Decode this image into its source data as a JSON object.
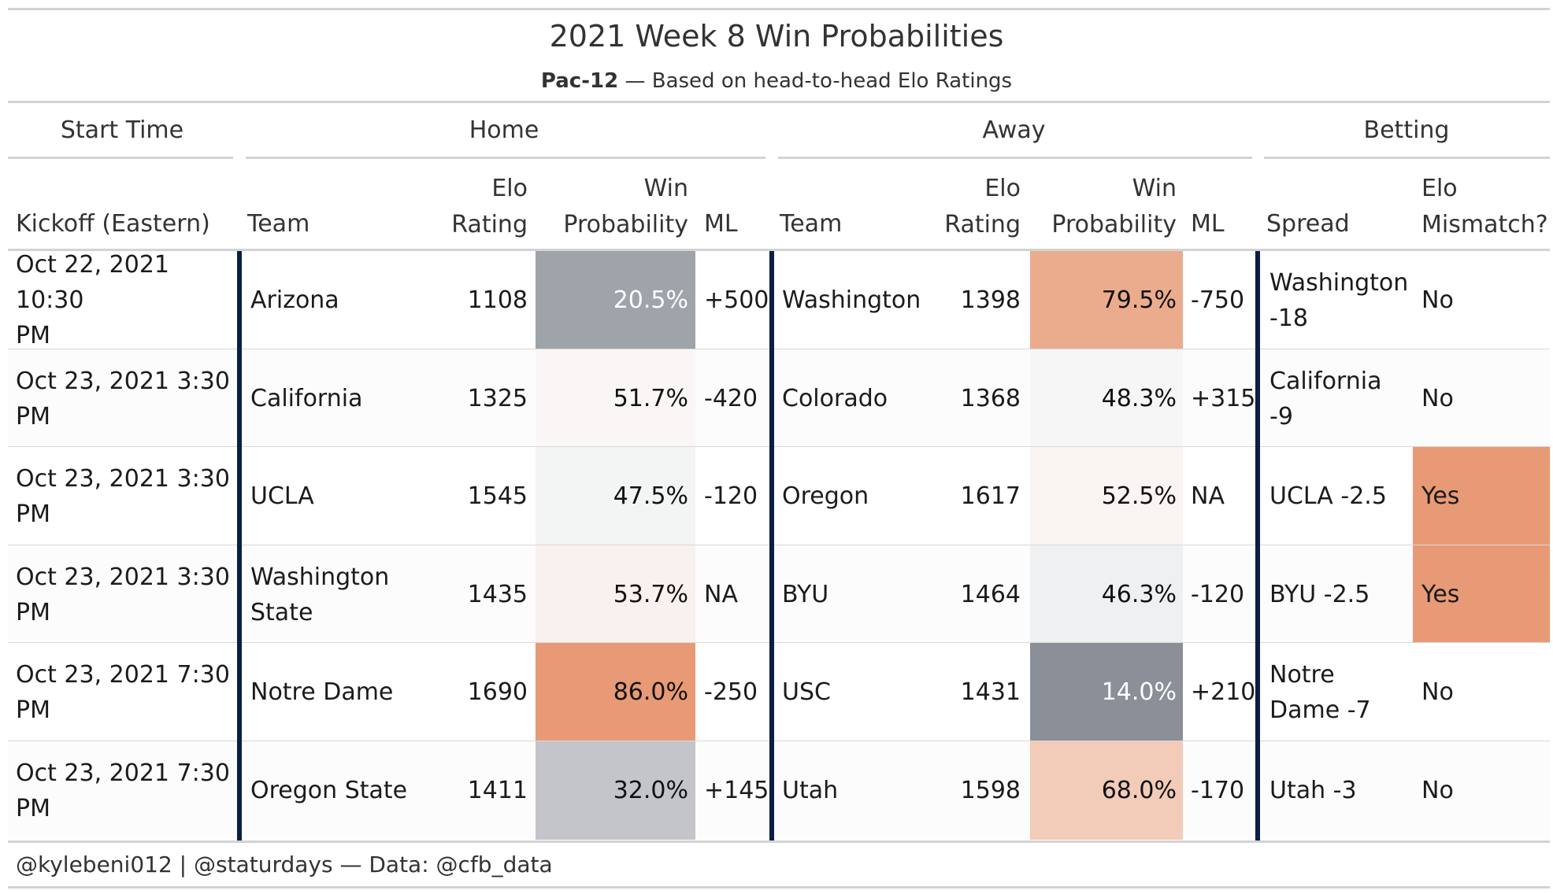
{
  "title": "2021 Week 8 Win Probabilities",
  "subtitle_bold": "Pac-12",
  "subtitle_rest": " — Based on head-to-head Elo Ratings",
  "groups": {
    "start_time": "Start Time",
    "home": "Home",
    "away": "Away",
    "betting": "Betting"
  },
  "headers": {
    "kickoff": "Kickoff (Eastern)",
    "home_team": "Team",
    "home_elo_1": "Elo",
    "home_elo_2": "Rating",
    "home_wp_1": "Win",
    "home_wp_2": "Probability",
    "home_ml": "ML",
    "away_team": "Team",
    "away_elo_1": "Elo",
    "away_elo_2": "Rating",
    "away_wp_1": "Win",
    "away_wp_2": "Probability",
    "away_ml": "ML",
    "spread": "Spread",
    "mismatch_1": "Elo",
    "mismatch_2": "Mismatch?"
  },
  "colors": {
    "divider": "#0b1f44",
    "mismatch_yes": "#e89a76",
    "scale_low": "#8b8f98",
    "scale_mid": "#fbfbfb",
    "scale_high": "#e89a76"
  },
  "chart_data": {
    "type": "table",
    "columns": [
      "Kickoff (Eastern)",
      "Team",
      "Elo Rating",
      "Win Probability",
      "ML",
      "Team",
      "Elo Rating",
      "Win Probability",
      "ML",
      "Spread",
      "Elo Mismatch?"
    ],
    "rows": [
      {
        "kickoff_1": "Oct 22, 2021 10:30",
        "kickoff_2": "PM",
        "home_team_1": "Arizona",
        "home_team_2": "",
        "home_elo": "1108",
        "home_wp": "20.5%",
        "home_wp_value": 0.205,
        "home_ml": "+500",
        "away_team": "Washington",
        "away_elo": "1398",
        "away_wp": "79.5%",
        "away_wp_value": 0.795,
        "away_ml": "-750",
        "spread_1": "Washington",
        "spread_2": "-18",
        "mismatch": "No"
      },
      {
        "kickoff_1": "Oct 23, 2021 3:30",
        "kickoff_2": "PM",
        "home_team_1": "California",
        "home_team_2": "",
        "home_elo": "1325",
        "home_wp": "51.7%",
        "home_wp_value": 0.517,
        "home_ml": "-420",
        "away_team": "Colorado",
        "away_elo": "1368",
        "away_wp": "48.3%",
        "away_wp_value": 0.483,
        "away_ml": "+315",
        "spread_1": "California",
        "spread_2": "-9",
        "mismatch": "No"
      },
      {
        "kickoff_1": "Oct 23, 2021 3:30",
        "kickoff_2": "PM",
        "home_team_1": "UCLA",
        "home_team_2": "",
        "home_elo": "1545",
        "home_wp": "47.5%",
        "home_wp_value": 0.475,
        "home_ml": "-120",
        "away_team": "Oregon",
        "away_elo": "1617",
        "away_wp": "52.5%",
        "away_wp_value": 0.525,
        "away_ml": "NA",
        "spread_1": "UCLA -2.5",
        "spread_2": "",
        "mismatch": "Yes"
      },
      {
        "kickoff_1": "Oct 23, 2021 3:30",
        "kickoff_2": "PM",
        "home_team_1": "Washington",
        "home_team_2": "State",
        "home_elo": "1435",
        "home_wp": "53.7%",
        "home_wp_value": 0.537,
        "home_ml": "NA",
        "away_team": "BYU",
        "away_elo": "1464",
        "away_wp": "46.3%",
        "away_wp_value": 0.463,
        "away_ml": "-120",
        "spread_1": "BYU -2.5",
        "spread_2": "",
        "mismatch": "Yes"
      },
      {
        "kickoff_1": "Oct 23, 2021 7:30",
        "kickoff_2": "PM",
        "home_team_1": "Notre Dame",
        "home_team_2": "",
        "home_elo": "1690",
        "home_wp": "86.0%",
        "home_wp_value": 0.86,
        "home_ml": "-250",
        "away_team": "USC",
        "away_elo": "1431",
        "away_wp": "14.0%",
        "away_wp_value": 0.14,
        "away_ml": "+210",
        "spread_1": "Notre",
        "spread_2": "Dame -7",
        "mismatch": "No"
      },
      {
        "kickoff_1": "Oct 23, 2021 7:30",
        "kickoff_2": "PM",
        "home_team_1": "Oregon State",
        "home_team_2": "",
        "home_elo": "1411",
        "home_wp": "32.0%",
        "home_wp_value": 0.32,
        "home_ml": "+145",
        "away_team": "Utah",
        "away_elo": "1598",
        "away_wp": "68.0%",
        "away_wp_value": 0.68,
        "away_ml": "-170",
        "spread_1": "Utah -3",
        "spread_2": "",
        "mismatch": "No"
      }
    ]
  },
  "footer": "@kylebeni012 | @staturdays — Data: @cfb_data"
}
